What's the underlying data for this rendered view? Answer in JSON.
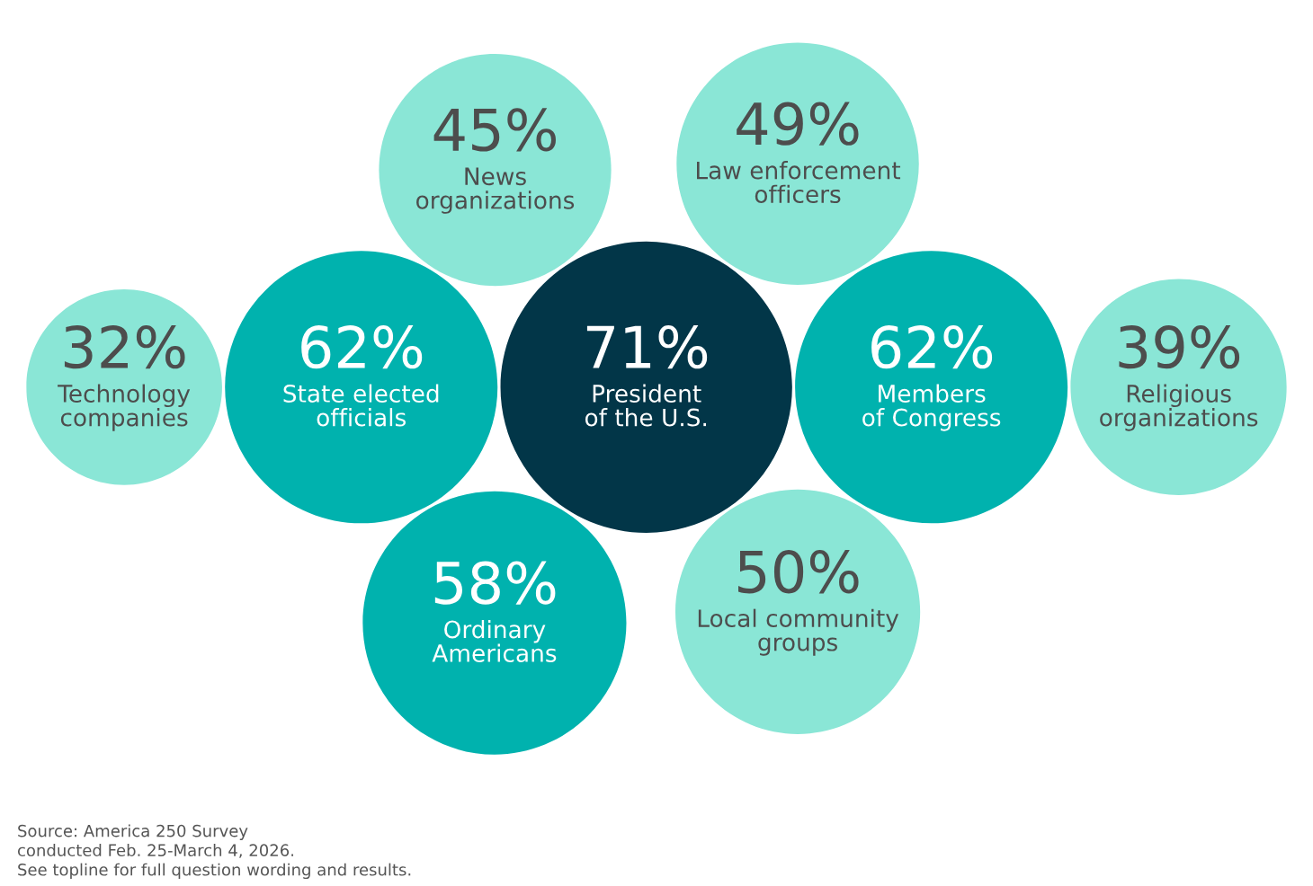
{
  "chart_data": {
    "type": "other",
    "categories": [
      "President\nof the U.S.",
      "Members\nof Congress",
      "State elected\nofficials",
      "Ordinary\nAmericans",
      "Local community\ngroups",
      "Law enforcement\nofficers",
      "News\norganizations",
      "Religious\norganizations",
      "Technology\ncompanies"
    ],
    "values": [
      71,
      62,
      62,
      58,
      50,
      49,
      45,
      39,
      32
    ],
    "value_labels": [
      "71%",
      "62%",
      "62%",
      "58%",
      "50%",
      "49%",
      "45%",
      "39%",
      "32%"
    ],
    "colors": [
      "#023648",
      "#00b2ae",
      "#00b2ae",
      "#00b2ae",
      "#8ae6d6",
      "#8ae6d6",
      "#8ae6d6",
      "#8ae6d6",
      "#8ae6d6"
    ],
    "annotations": [
      "Source: America 250 Survey\nconducted Feb. 25-March 4, 2026.\nSee topline for full question wording and results."
    ]
  }
}
